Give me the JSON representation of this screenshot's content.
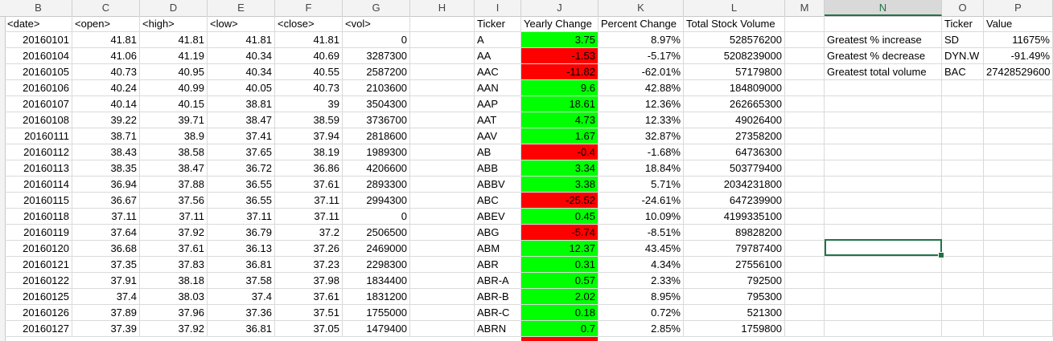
{
  "columns": [
    "B",
    "C",
    "D",
    "E",
    "F",
    "G",
    "H",
    "I",
    "J",
    "K",
    "L",
    "M",
    "N",
    "O",
    "P"
  ],
  "selected_column": "N",
  "headers": {
    "date": "<date>",
    "open": "<open>",
    "high": "<high>",
    "low": "<low>",
    "close": "<close>",
    "vol": "<vol>",
    "ticker": "Ticker",
    "yearly_change": "Yearly Change",
    "percent_change": "Percent Change",
    "total_volume": "Total Stock Volume",
    "summary_ticker": "Ticker",
    "summary_value": "Value"
  },
  "price_rows": [
    [
      "20160101",
      "41.81",
      "41.81",
      "41.81",
      "41.81",
      "0"
    ],
    [
      "20160104",
      "41.06",
      "41.19",
      "40.34",
      "40.69",
      "3287300"
    ],
    [
      "20160105",
      "40.73",
      "40.95",
      "40.34",
      "40.55",
      "2587200"
    ],
    [
      "20160106",
      "40.24",
      "40.99",
      "40.05",
      "40.73",
      "2103600"
    ],
    [
      "20160107",
      "40.14",
      "40.15",
      "38.81",
      "39",
      "3504300"
    ],
    [
      "20160108",
      "39.22",
      "39.71",
      "38.47",
      "38.59",
      "3736700"
    ],
    [
      "20160111",
      "38.71",
      "38.9",
      "37.41",
      "37.94",
      "2818600"
    ],
    [
      "20160112",
      "38.43",
      "38.58",
      "37.65",
      "38.19",
      "1989300"
    ],
    [
      "20160113",
      "38.35",
      "38.47",
      "36.72",
      "36.86",
      "4206600"
    ],
    [
      "20160114",
      "36.94",
      "37.88",
      "36.55",
      "37.61",
      "2893300"
    ],
    [
      "20160115",
      "36.67",
      "37.56",
      "36.55",
      "37.11",
      "2994300"
    ],
    [
      "20160118",
      "37.11",
      "37.11",
      "37.11",
      "37.11",
      "0"
    ],
    [
      "20160119",
      "37.64",
      "37.92",
      "36.79",
      "37.2",
      "2506500"
    ],
    [
      "20160120",
      "36.68",
      "37.61",
      "36.13",
      "37.26",
      "2469000"
    ],
    [
      "20160121",
      "37.35",
      "37.83",
      "36.81",
      "37.23",
      "2298300"
    ],
    [
      "20160122",
      "37.91",
      "38.18",
      "37.58",
      "37.98",
      "1834400"
    ],
    [
      "20160125",
      "37.4",
      "38.03",
      "37.4",
      "37.61",
      "1831200"
    ],
    [
      "20160126",
      "37.89",
      "37.96",
      "37.36",
      "37.51",
      "1755000"
    ],
    [
      "20160127",
      "37.39",
      "37.92",
      "36.81",
      "37.05",
      "1479400"
    ]
  ],
  "summary_rows": [
    {
      "ticker": "A",
      "change": "3.75",
      "pct": "8.97%",
      "vol": "528576200",
      "color": "#00ff00"
    },
    {
      "ticker": "AA",
      "change": "-1.53",
      "pct": "-5.17%",
      "vol": "5208239000",
      "color": "#ff0000"
    },
    {
      "ticker": "AAC",
      "change": "-11.82",
      "pct": "-62.01%",
      "vol": "57179800",
      "color": "#ff0000"
    },
    {
      "ticker": "AAN",
      "change": "9.6",
      "pct": "42.88%",
      "vol": "184809000",
      "color": "#00ff00"
    },
    {
      "ticker": "AAP",
      "change": "18.61",
      "pct": "12.36%",
      "vol": "262665300",
      "color": "#00ff00"
    },
    {
      "ticker": "AAT",
      "change": "4.73",
      "pct": "12.33%",
      "vol": "49026400",
      "color": "#00ff00"
    },
    {
      "ticker": "AAV",
      "change": "1.67",
      "pct": "32.87%",
      "vol": "27358200",
      "color": "#00ff00"
    },
    {
      "ticker": "AB",
      "change": "-0.4",
      "pct": "-1.68%",
      "vol": "64736300",
      "color": "#ff0000"
    },
    {
      "ticker": "ABB",
      "change": "3.34",
      "pct": "18.84%",
      "vol": "503779400",
      "color": "#00ff00"
    },
    {
      "ticker": "ABBV",
      "change": "3.38",
      "pct": "5.71%",
      "vol": "2034231800",
      "color": "#00ff00"
    },
    {
      "ticker": "ABC",
      "change": "-25.52",
      "pct": "-24.61%",
      "vol": "647239900",
      "color": "#ff0000"
    },
    {
      "ticker": "ABEV",
      "change": "0.45",
      "pct": "10.09%",
      "vol": "4199335100",
      "color": "#00ff00"
    },
    {
      "ticker": "ABG",
      "change": "-5.74",
      "pct": "-8.51%",
      "vol": "89828200",
      "color": "#ff0000"
    },
    {
      "ticker": "ABM",
      "change": "12.37",
      "pct": "43.45%",
      "vol": "79787400",
      "color": "#00ff00"
    },
    {
      "ticker": "ABR",
      "change": "0.31",
      "pct": "4.34%",
      "vol": "27556100",
      "color": "#00ff00"
    },
    {
      "ticker": "ABR-A",
      "change": "0.57",
      "pct": "2.33%",
      "vol": "792500",
      "color": "#00ff00"
    },
    {
      "ticker": "ABR-B",
      "change": "2.02",
      "pct": "8.95%",
      "vol": "795300",
      "color": "#00ff00"
    },
    {
      "ticker": "ABR-C",
      "change": "0.18",
      "pct": "0.72%",
      "vol": "521300",
      "color": "#00ff00"
    },
    {
      "ticker": "ABRN",
      "change": "0.7",
      "pct": "2.85%",
      "vol": "1759800",
      "color": "#00ff00"
    }
  ],
  "greatest": [
    {
      "label": "Greatest % increase",
      "ticker": "SD",
      "value": "11675%"
    },
    {
      "label": "Greatest % decrease",
      "ticker": "DYN.W",
      "value": "-91.49%"
    },
    {
      "label": "Greatest total volume",
      "ticker": "BAC",
      "value": "27428529600"
    }
  ],
  "colors": {
    "positive": "#00ff00",
    "negative": "#ff0000",
    "selection": "#217346"
  }
}
